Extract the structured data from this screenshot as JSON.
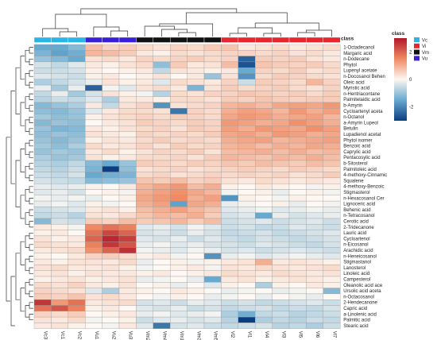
{
  "chart_data": {
    "type": "heatmap",
    "title": "",
    "legend_title": "class",
    "legend_items": [
      "Vc",
      "Vi",
      "Vm",
      "Vu"
    ],
    "legend_colors": [
      "#29b5e6",
      "#e8262d",
      "#111111",
      "#3a1fd9"
    ],
    "color_scale": {
      "min": -3,
      "max": 3,
      "low_color": "#0b3d80",
      "mid_color": "#fdf8f3",
      "high_color": "#b2182b",
      "ticks": [
        "2",
        "0",
        "-2"
      ]
    },
    "columns": [
      "Vc3",
      "Vc1",
      "Vc2",
      "Vu1",
      "Vu2",
      "Vu3",
      "Vm2",
      "Vm4",
      "Vm1",
      "Vm3",
      "Vm5",
      "Vi2",
      "Vi1",
      "Vi4",
      "Vi3",
      "Vi5",
      "Vi6",
      "Vi7"
    ],
    "column_classes": [
      "Vc",
      "Vc",
      "Vc",
      "Vu",
      "Vu",
      "Vu",
      "Vm",
      "Vm",
      "Vm",
      "Vm",
      "Vm",
      "Vi",
      "Vi",
      "Vi",
      "Vi",
      "Vi",
      "Vi",
      "Vi"
    ],
    "rows": [
      "1-Octadecanol",
      "Margaric acid",
      "n-Dodecane",
      "Phytol",
      "Lupenyl acetate",
      "n-Docosanol  Behen",
      "Oleic acid",
      "Myristic acid",
      "n-Hentriacontane",
      "Palmitelaidic acid",
      "b-Amyrin",
      "Cycloartenyl aceta",
      "n-Octanol",
      "a-Amyrin  Lupeol",
      "Betulin",
      "Lupadienol  acetat",
      "Phytol  isomer",
      "Benzoic acid",
      "Caprylic acid",
      "Pentacosylic acid",
      "b-Sitosterol",
      "Palmitoleic acid",
      "4-methoxy-Cinnamic",
      "Squalene",
      "4-methoxy-Benzoic",
      "Stigmasterol",
      "n-Hexacosanol  Cer",
      "Lignoceric acid",
      "Behenic acid",
      "n-Tetracosanol",
      "Cerotic acid",
      "2-Tridecanone",
      "Lauric acid",
      "Cycloartenol",
      "n-Eicosanol",
      "Arachidic acid",
      "n-Heneicosanol",
      "Stigmastanol",
      "Lanosterol",
      "Linoleic acid",
      "Campesterol",
      "Oleanolic acid ace",
      "Ursolic acid aceta",
      "n-Octacosanol",
      "2-Hendecanone",
      "Capric acid",
      "a-Linolenic acid",
      "Palmitic acid",
      "Stearic acid"
    ],
    "values": [
      [
        -1.5,
        -1.5,
        -1.2,
        0.8,
        0.5,
        0.6,
        0.4,
        0.3,
        0.5,
        0.4,
        0.6,
        0.7,
        0.2,
        0.3,
        0.4,
        0.2,
        0.3,
        0.4
      ],
      [
        -1.3,
        -1.6,
        -1.4,
        0.9,
        0.8,
        0.6,
        0.2,
        0.1,
        0.4,
        0.3,
        0.4,
        0.5,
        0.5,
        0.4,
        0.5,
        0.3,
        0.4,
        0.2
      ],
      [
        -1.0,
        -1.2,
        -1.5,
        0.3,
        0.4,
        0.2,
        0.5,
        0.4,
        0.5,
        0.6,
        0.4,
        0.5,
        -2.5,
        0.6,
        0.5,
        0.6,
        0.3,
        0.2
      ],
      [
        -0.4,
        -0.6,
        -0.3,
        0.2,
        0.1,
        0.3,
        0.4,
        -1.1,
        0.6,
        0.2,
        0.3,
        0.8,
        -2.7,
        0.7,
        0.6,
        0.5,
        0.6,
        0.4
      ],
      [
        -0.5,
        -0.5,
        -0.4,
        0.1,
        0.0,
        0.1,
        0.2,
        -0.6,
        0.3,
        0.2,
        0.1,
        0.2,
        -1.5,
        0.5,
        0.4,
        0.6,
        0.3,
        0.4
      ],
      [
        -0.3,
        -0.4,
        -0.5,
        0.1,
        0.2,
        0.0,
        0.1,
        0.3,
        0.0,
        0.2,
        -1.0,
        0.3,
        -1.8,
        0.4,
        0.6,
        0.5,
        0.4,
        0.3
      ],
      [
        -0.8,
        -0.6,
        -0.4,
        -0.2,
        0.3,
        0.1,
        0.2,
        -0.3,
        0.4,
        0.3,
        0.2,
        0.5,
        -0.5,
        0.6,
        0.5,
        0.4,
        0.9,
        0.5
      ],
      [
        -0.2,
        -0.9,
        -0.2,
        -2.5,
        -0.1,
        -0.3,
        0.3,
        0.4,
        0.2,
        -1.3,
        0.3,
        0.6,
        0.4,
        0.5,
        0.6,
        0.4,
        0.3,
        0.5
      ],
      [
        -0.6,
        -0.2,
        -0.9,
        -0.4,
        0.3,
        0.1,
        -0.1,
        -0.7,
        0.4,
        0.3,
        0.5,
        0.5,
        0.7,
        0.6,
        0.5,
        0.6,
        0.4,
        0.6
      ],
      [
        -0.7,
        -0.5,
        -0.6,
        -0.3,
        -0.8,
        0.2,
        0.2,
        0.1,
        0.4,
        0.4,
        0.3,
        0.6,
        0.5,
        0.7,
        0.6,
        0.5,
        0.6,
        0.6
      ],
      [
        -1.2,
        -1.0,
        -0.8,
        0.2,
        -0.6,
        0.3,
        0.5,
        -1.8,
        0.3,
        0.4,
        0.5,
        0.9,
        1.0,
        0.8,
        1.1,
        1.2,
        1.1,
        1.3
      ],
      [
        -1.1,
        -1.2,
        -1.0,
        -0.3,
        0.2,
        0.4,
        0.4,
        0.3,
        -2.2,
        0.5,
        0.4,
        1.0,
        1.2,
        1.1,
        0.9,
        1.3,
        1.0,
        1.2
      ],
      [
        -0.9,
        -1.1,
        -1.0,
        0.1,
        0.3,
        0.4,
        0.5,
        0.4,
        0.6,
        0.5,
        0.4,
        1.1,
        1.3,
        1.2,
        1.0,
        1.1,
        1.2,
        0.9
      ],
      [
        -1.2,
        -1.0,
        -1.1,
        0.0,
        0.2,
        0.3,
        0.6,
        0.5,
        0.4,
        0.6,
        0.5,
        1.3,
        1.2,
        1.0,
        1.1,
        1.4,
        1.2,
        1.0
      ],
      [
        -1.0,
        -1.3,
        -1.2,
        0.2,
        0.1,
        0.3,
        0.4,
        0.5,
        0.3,
        0.6,
        0.5,
        1.2,
        1.0,
        1.3,
        1.2,
        1.1,
        1.4,
        1.2
      ],
      [
        -1.1,
        -1.0,
        -1.1,
        0.3,
        0.2,
        0.1,
        0.5,
        0.4,
        0.5,
        0.4,
        0.6,
        1.1,
        1.2,
        1.0,
        1.3,
        1.2,
        1.0,
        1.1
      ],
      [
        -1.0,
        -1.2,
        -1.0,
        0.1,
        0.3,
        0.2,
        0.4,
        0.6,
        0.4,
        0.5,
        0.4,
        1.0,
        1.1,
        1.2,
        0.9,
        1.0,
        1.1,
        1.2
      ],
      [
        -0.9,
        -1.1,
        -0.8,
        0.4,
        0.2,
        0.3,
        0.5,
        0.3,
        0.6,
        0.4,
        0.5,
        0.9,
        1.0,
        0.8,
        1.0,
        0.9,
        1.1,
        1.0
      ],
      [
        -1.0,
        -0.9,
        -1.0,
        0.2,
        0.4,
        0.1,
        0.3,
        0.5,
        0.4,
        0.6,
        0.3,
        0.8,
        0.9,
        1.0,
        0.8,
        1.0,
        0.8,
        0.9
      ],
      [
        -0.8,
        -1.0,
        -0.9,
        0.3,
        0.1,
        0.2,
        0.4,
        0.4,
        0.5,
        0.3,
        0.6,
        0.9,
        0.8,
        0.7,
        0.9,
        0.8,
        1.0,
        0.8
      ],
      [
        -0.7,
        -0.8,
        -0.6,
        -1.2,
        -1.5,
        -1.0,
        0.6,
        0.5,
        0.4,
        0.6,
        0.5,
        0.7,
        0.6,
        0.8,
        0.7,
        0.6,
        0.8,
        0.7
      ],
      [
        -0.6,
        -0.7,
        -0.5,
        -1.3,
        -3.0,
        -1.1,
        0.3,
        0.4,
        0.5,
        0.3,
        0.4,
        0.5,
        0.6,
        0.5,
        0.4,
        0.6,
        0.5,
        0.4
      ],
      [
        -0.5,
        -0.6,
        -0.4,
        -1.5,
        -1.4,
        -1.3,
        0.4,
        0.5,
        0.3,
        0.4,
        0.5,
        0.4,
        0.5,
        0.4,
        0.5,
        0.3,
        0.4,
        0.6
      ],
      [
        -0.4,
        -0.5,
        -0.6,
        -1.2,
        -1.1,
        -1.0,
        0.7,
        0.6,
        0.8,
        0.5,
        0.6,
        0.3,
        0.2,
        0.4,
        0.3,
        0.2,
        0.3,
        0.2
      ],
      [
        -0.2,
        -0.3,
        -0.2,
        0.1,
        0.0,
        0.2,
        0.9,
        1.1,
        1.3,
        0.8,
        1.0,
        0.1,
        0.0,
        0.2,
        0.1,
        0.0,
        -0.1,
        0.1
      ],
      [
        -0.3,
        -0.2,
        -0.4,
        0.0,
        0.1,
        -0.1,
        1.0,
        1.2,
        1.4,
        1.1,
        0.9,
        -0.1,
        0.0,
        0.1,
        -0.2,
        0.0,
        0.1,
        -0.1
      ],
      [
        -0.1,
        -0.2,
        -0.1,
        -0.2,
        0.0,
        0.1,
        1.1,
        1.3,
        1.5,
        1.0,
        1.2,
        -1.8,
        0.1,
        0.0,
        -0.1,
        0.1,
        0.0,
        0.0
      ],
      [
        -0.2,
        -0.1,
        -0.3,
        0.1,
        -0.1,
        0.0,
        1.0,
        1.2,
        -1.6,
        1.1,
        1.0,
        -0.2,
        -0.1,
        0.0,
        0.1,
        -0.2,
        0.0,
        -0.1
      ],
      [
        -0.5,
        -0.4,
        -0.3,
        0.2,
        0.3,
        0.1,
        0.8,
        1.0,
        1.2,
        0.9,
        0.7,
        -0.3,
        -0.2,
        -0.1,
        -0.3,
        -0.2,
        -0.1,
        -0.2
      ],
      [
        -0.6,
        -0.5,
        -0.7,
        0.3,
        0.2,
        0.4,
        0.7,
        0.9,
        0.8,
        1.0,
        0.6,
        -0.4,
        -0.3,
        -1.5,
        -0.2,
        -0.4,
        -0.3,
        -0.2
      ],
      [
        -1.2,
        -0.4,
        -0.5,
        0.6,
        0.5,
        0.8,
        0.6,
        0.7,
        0.9,
        0.6,
        0.8,
        -0.5,
        -0.4,
        -0.3,
        -0.5,
        -0.4,
        -0.3,
        -0.5
      ],
      [
        0.2,
        0.1,
        -0.1,
        1.5,
        1.8,
        1.6,
        -0.3,
        -0.2,
        -0.4,
        -0.1,
        -0.3,
        -0.5,
        -0.4,
        -0.6,
        -0.5,
        -0.3,
        -0.4,
        -0.5
      ],
      [
        0.1,
        0.2,
        0.0,
        1.8,
        2.4,
        2.0,
        -0.4,
        -0.3,
        -0.5,
        -0.2,
        -0.4,
        -0.6,
        -0.5,
        -0.4,
        -0.6,
        -0.5,
        -0.4,
        -0.3
      ],
      [
        0.3,
        0.1,
        0.2,
        2.0,
        2.8,
        2.5,
        -0.3,
        -0.4,
        -0.2,
        -0.5,
        -0.3,
        -0.5,
        -0.6,
        -0.4,
        -0.5,
        -0.6,
        -0.5,
        -0.4
      ],
      [
        0.4,
        0.3,
        0.2,
        1.6,
        2.6,
        2.2,
        -0.2,
        -0.1,
        -0.3,
        -0.2,
        -0.4,
        -0.4,
        -0.5,
        -0.3,
        -0.4,
        -0.5,
        -0.6,
        -0.4
      ],
      [
        0.2,
        0.3,
        0.4,
        1.4,
        2.0,
        2.7,
        -0.1,
        -0.2,
        -0.3,
        -0.1,
        -0.2,
        -0.4,
        -0.3,
        -0.5,
        -0.4,
        -0.3,
        -0.4,
        -0.5
      ],
      [
        0.1,
        0.0,
        0.2,
        0.5,
        0.6,
        0.4,
        0.1,
        0.2,
        -0.1,
        0.0,
        -1.8,
        -0.2,
        -0.1,
        -0.3,
        -0.2,
        -0.1,
        -0.2,
        -0.3
      ],
      [
        0.2,
        0.1,
        0.3,
        0.3,
        0.2,
        0.4,
        -0.2,
        0.0,
        0.1,
        -0.1,
        0.1,
        0.2,
        0.3,
        1.0,
        0.2,
        0.3,
        0.2,
        0.1
      ],
      [
        0.3,
        0.4,
        0.2,
        0.2,
        0.3,
        0.1,
        -0.1,
        0.0,
        0.1,
        0.2,
        -0.1,
        0.3,
        0.2,
        0.4,
        0.3,
        0.2,
        0.3,
        0.4
      ],
      [
        0.2,
        0.3,
        0.1,
        0.3,
        0.2,
        0.2,
        0.1,
        0.2,
        0.0,
        0.1,
        0.2,
        0.4,
        0.3,
        0.2,
        0.4,
        0.3,
        0.2,
        0.3
      ],
      [
        0.1,
        0.2,
        0.3,
        0.1,
        0.2,
        0.3,
        -0.2,
        -0.1,
        0.0,
        -0.2,
        -1.5,
        0.2,
        0.3,
        0.1,
        0.2,
        0.3,
        0.2,
        0.1
      ],
      [
        0.4,
        0.3,
        0.5,
        0.2,
        0.1,
        0.3,
        0.0,
        0.1,
        -0.2,
        0.0,
        -0.3,
        0.1,
        0.0,
        -0.8,
        0.1,
        0.0,
        0.2,
        0.1
      ],
      [
        0.5,
        0.4,
        0.3,
        -0.3,
        -0.8,
        0.2,
        0.1,
        0.0,
        0.2,
        0.1,
        0.0,
        -0.2,
        -0.1,
        0.0,
        -0.2,
        -0.1,
        0.0,
        -1.2
      ],
      [
        0.6,
        0.5,
        0.7,
        0.3,
        0.4,
        0.2,
        0.0,
        -0.1,
        0.1,
        0.0,
        -0.2,
        -0.1,
        0.0,
        -0.2,
        0.0,
        -0.1,
        -0.2,
        0.0
      ],
      [
        2.6,
        1.3,
        1.8,
        0.2,
        0.3,
        0.4,
        -0.4,
        -0.3,
        -0.5,
        -0.2,
        -0.3,
        -0.5,
        -0.4,
        -0.6,
        -0.5,
        -0.4,
        -0.3,
        -0.5
      ],
      [
        1.8,
        2.2,
        1.6,
        0.1,
        0.2,
        0.0,
        -0.3,
        -0.4,
        -0.2,
        -0.5,
        -0.4,
        -0.6,
        -0.5,
        -0.4,
        -0.6,
        -0.5,
        -0.6,
        -0.4
      ],
      [
        0.5,
        0.4,
        0.6,
        0.0,
        0.1,
        0.2,
        -0.2,
        -0.1,
        -0.3,
        -0.2,
        -0.1,
        -0.8,
        -1.4,
        -0.6,
        -0.5,
        -0.7,
        -0.6,
        -0.5
      ],
      [
        0.3,
        0.2,
        0.4,
        -0.1,
        0.0,
        0.1,
        -0.5,
        -0.3,
        -0.2,
        -0.4,
        -0.3,
        -0.7,
        -3.0,
        -0.8,
        -0.6,
        -0.7,
        -0.5,
        -0.6
      ],
      [
        0.2,
        0.3,
        0.1,
        0.0,
        -0.1,
        0.2,
        -0.3,
        -2.2,
        -0.4,
        -0.3,
        -0.5,
        -0.6,
        -0.5,
        -0.4,
        -0.7,
        -0.6,
        -0.8,
        -0.5
      ]
    ]
  }
}
